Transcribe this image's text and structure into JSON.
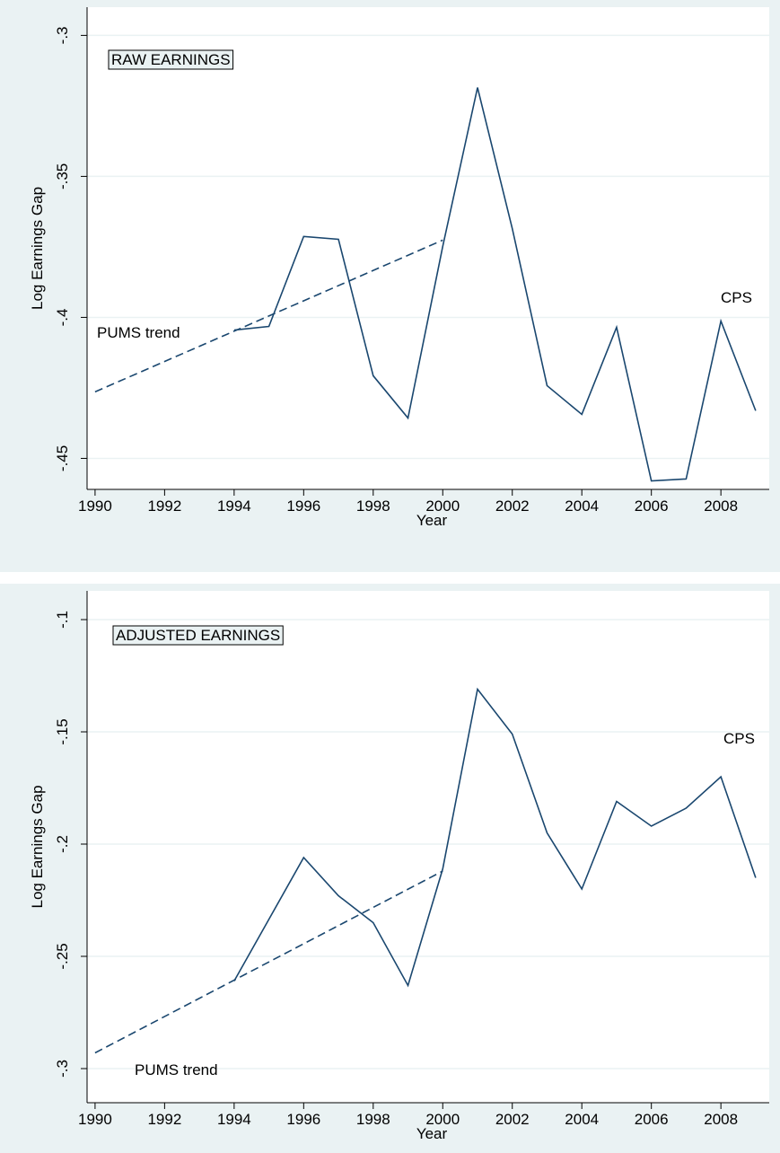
{
  "chart_data": [
    {
      "type": "line",
      "label": "RAW EARNINGS",
      "xlabel": "Year",
      "ylabel": "Log Earnings Gap",
      "xlim": [
        1989.77,
        2009.39
      ],
      "ylim": [
        -0.461,
        -0.29
      ],
      "xticks": [
        1990,
        1992,
        1994,
        1996,
        1998,
        2000,
        2002,
        2004,
        2006,
        2008
      ],
      "yticks": [
        {
          "value": -0.45,
          "label": "-.45"
        },
        {
          "value": -0.4,
          "label": "-.4"
        },
        {
          "value": -0.35,
          "label": "-.35"
        },
        {
          "value": -0.3,
          "label": "-.3"
        }
      ],
      "grid": true,
      "series": [
        {
          "name": "CPS",
          "color": "#1a476f",
          "dashed": false,
          "x": [
            1994,
            1995,
            1996,
            1997,
            1998,
            1999,
            2000,
            2001,
            2002,
            2003,
            2004,
            2005,
            2006,
            2007,
            2008,
            2009
          ],
          "values": [
            -0.4045,
            -0.4032,
            -0.3713,
            -0.3723,
            -0.4207,
            -0.4357,
            -0.3748,
            -0.3185,
            -0.3685,
            -0.4242,
            -0.4344,
            -0.4035,
            -0.458,
            -0.4573,
            -0.4013,
            -0.4331
          ]
        },
        {
          "name": "PUMS trend",
          "color": "#1a476f",
          "dashed": true,
          "x": [
            1990,
            2000
          ],
          "values": [
            -0.4264,
            -0.3726
          ]
        }
      ]
    },
    {
      "type": "line",
      "label": "ADJUSTED EARNINGS",
      "xlabel": "Year",
      "ylabel": "Log Earnings Gap",
      "xlim": [
        1989.77,
        2009.39
      ],
      "ylim": [
        -0.3152,
        -0.0872
      ],
      "xticks": [
        1990,
        1992,
        1994,
        1996,
        1998,
        2000,
        2002,
        2004,
        2006,
        2008
      ],
      "yticks": [
        {
          "value": -0.3,
          "label": "-.3"
        },
        {
          "value": -0.25,
          "label": "-.25"
        },
        {
          "value": -0.2,
          "label": "-.2"
        },
        {
          "value": -0.15,
          "label": "-.15"
        },
        {
          "value": -0.1,
          "label": "-.1"
        }
      ],
      "grid": true,
      "series": [
        {
          "name": "CPS",
          "color": "#1a476f",
          "dashed": false,
          "x": [
            1994,
            1995,
            1996,
            1997,
            1998,
            1999,
            2000,
            2001,
            2002,
            2003,
            2004,
            2005,
            2006,
            2007,
            2008,
            2009
          ],
          "values": [
            -0.261,
            -0.2335,
            -0.206,
            -0.223,
            -0.235,
            -0.263,
            -0.211,
            -0.131,
            -0.151,
            -0.195,
            -0.22,
            -0.181,
            -0.192,
            -0.184,
            -0.17,
            -0.215
          ]
        },
        {
          "name": "PUMS trend",
          "color": "#1a476f",
          "dashed": true,
          "x": [
            1990,
            2000
          ],
          "values": [
            -0.293,
            -0.212
          ]
        }
      ]
    }
  ]
}
